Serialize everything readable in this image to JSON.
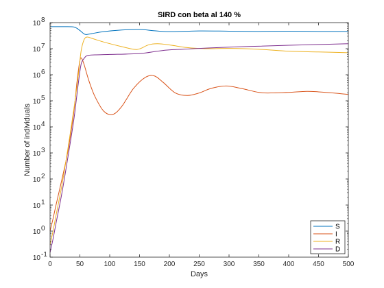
{
  "chart_data": {
    "type": "line",
    "title": "SIRD con beta al 140 %",
    "xlabel": "Days",
    "ylabel": "Number of individuals",
    "xlim": [
      0,
      500
    ],
    "ylim": [
      0.1,
      100000000
    ],
    "yscale": "log",
    "grid": false,
    "legend_position": "bottom-right",
    "x_ticks": [
      0,
      50,
      100,
      150,
      200,
      250,
      300,
      350,
      400,
      450,
      500
    ],
    "x_tick_labels": [
      "0",
      "50",
      "100",
      "150",
      "200",
      "250",
      "300",
      "350",
      "400",
      "450",
      "500"
    ],
    "y_ticks": [
      0.1,
      1,
      10,
      100,
      1000,
      10000,
      100000,
      1000000,
      10000000,
      100000000
    ],
    "y_tick_labels": [
      {
        "base": "10",
        "exp": "-1"
      },
      {
        "base": "10",
        "exp": "0"
      },
      {
        "base": "10",
        "exp": "1"
      },
      {
        "base": "10",
        "exp": "2"
      },
      {
        "base": "10",
        "exp": "3"
      },
      {
        "base": "10",
        "exp": "4"
      },
      {
        "base": "10",
        "exp": "5"
      },
      {
        "base": "10",
        "exp": "6"
      },
      {
        "base": "10",
        "exp": "7"
      },
      {
        "base": "10",
        "exp": "8"
      }
    ],
    "series": [
      {
        "name": "S",
        "color": "#0072BD",
        "points": [
          [
            0,
            70000000
          ],
          [
            20,
            70000000
          ],
          [
            40,
            68000000
          ],
          [
            50,
            50000000
          ],
          [
            55,
            40000000
          ],
          [
            60,
            35000000
          ],
          [
            70,
            38000000
          ],
          [
            90,
            45000000
          ],
          [
            120,
            52000000
          ],
          [
            150,
            55000000
          ],
          [
            170,
            50000000
          ],
          [
            200,
            45000000
          ],
          [
            250,
            48000000
          ],
          [
            300,
            47000000
          ],
          [
            350,
            46000000
          ],
          [
            400,
            47000000
          ],
          [
            450,
            46000000
          ],
          [
            500,
            46000000
          ]
        ]
      },
      {
        "name": "I",
        "color": "#D95319",
        "points": [
          [
            0,
            1
          ],
          [
            5,
            3
          ],
          [
            10,
            10
          ],
          [
            20,
            100
          ],
          [
            30,
            1200
          ],
          [
            40,
            40000
          ],
          [
            45,
            500000
          ],
          [
            50,
            3500000
          ],
          [
            53,
            4200000
          ],
          [
            57,
            2500000
          ],
          [
            65,
            600000
          ],
          [
            75,
            150000
          ],
          [
            90,
            40000
          ],
          [
            105,
            30000
          ],
          [
            120,
            60000
          ],
          [
            140,
            300000
          ],
          [
            160,
            800000
          ],
          [
            175,
            900000
          ],
          [
            190,
            500000
          ],
          [
            210,
            200000
          ],
          [
            230,
            160000
          ],
          [
            250,
            200000
          ],
          [
            270,
            300000
          ],
          [
            295,
            370000
          ],
          [
            320,
            300000
          ],
          [
            350,
            210000
          ],
          [
            370,
            200000
          ],
          [
            400,
            210000
          ],
          [
            430,
            230000
          ],
          [
            450,
            220000
          ],
          [
            480,
            195000
          ],
          [
            500,
            175000
          ]
        ]
      },
      {
        "name": "R",
        "color": "#EDB120",
        "points": [
          [
            0,
            0.3
          ],
          [
            5,
            1
          ],
          [
            10,
            4
          ],
          [
            20,
            60
          ],
          [
            30,
            1500
          ],
          [
            40,
            50000
          ],
          [
            47,
            800000
          ],
          [
            52,
            8000000
          ],
          [
            57,
            22000000
          ],
          [
            62,
            28000000
          ],
          [
            70,
            25000000
          ],
          [
            90,
            18000000
          ],
          [
            120,
            12000000
          ],
          [
            140,
            9500000
          ],
          [
            150,
            9800000
          ],
          [
            165,
            14000000
          ],
          [
            180,
            15500000
          ],
          [
            200,
            14000000
          ],
          [
            230,
            11000000
          ],
          [
            260,
            10000000
          ],
          [
            300,
            10200000
          ],
          [
            350,
            9500000
          ],
          [
            400,
            8000000
          ],
          [
            450,
            7500000
          ],
          [
            500,
            7000000
          ]
        ]
      },
      {
        "name": "D",
        "color": "#7E2F8E",
        "points": [
          [
            0,
            0.15
          ],
          [
            5,
            0.5
          ],
          [
            10,
            2
          ],
          [
            20,
            30
          ],
          [
            30,
            700
          ],
          [
            40,
            20000
          ],
          [
            47,
            400000
          ],
          [
            52,
            2500000
          ],
          [
            57,
            4200000
          ],
          [
            62,
            5400000
          ],
          [
            75,
            5800000
          ],
          [
            100,
            6000000
          ],
          [
            150,
            6500000
          ],
          [
            180,
            8000000
          ],
          [
            200,
            9000000
          ],
          [
            250,
            10200000
          ],
          [
            300,
            11500000
          ],
          [
            350,
            12500000
          ],
          [
            400,
            13500000
          ],
          [
            450,
            14500000
          ],
          [
            500,
            15500000
          ]
        ]
      }
    ]
  }
}
